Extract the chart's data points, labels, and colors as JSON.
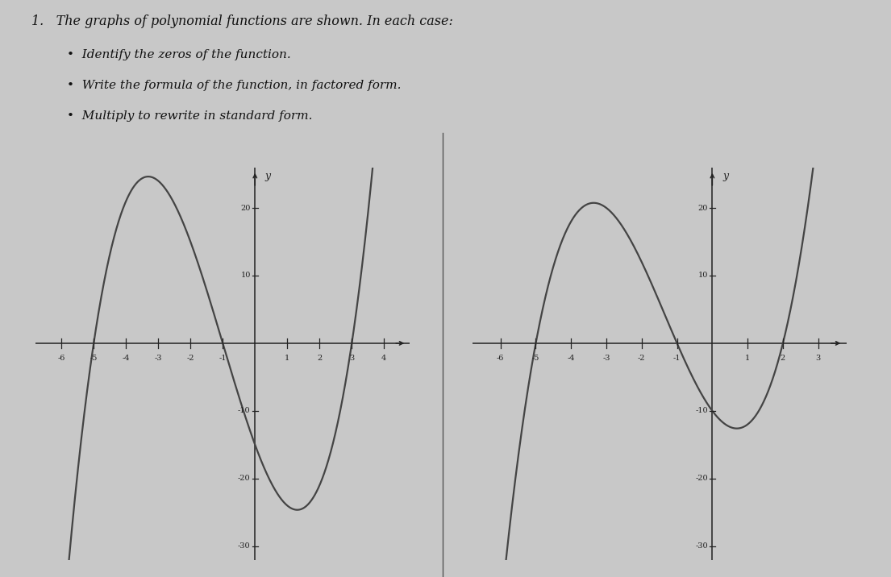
{
  "title_line1": "1.   The graphs of polynomial functions are shown. In each case:",
  "bullet1": "Identify the zeros of the function.",
  "bullet2": "Write the formula of the function, in factored form.",
  "bullet3": "Multiply to rewrite in standard form.",
  "graph1": {
    "zeros": [
      -5,
      -1,
      3
    ],
    "xlim": [
      -6.8,
      4.8
    ],
    "ylim": [
      -32,
      26
    ],
    "xticks": [
      -6,
      -5,
      -4,
      -3,
      -2,
      -1,
      1,
      2,
      3,
      4
    ],
    "yticks": [
      -30,
      -20,
      -10,
      10,
      20
    ]
  },
  "graph2": {
    "zeros": [
      -5,
      -1,
      2
    ],
    "xlim": [
      -6.8,
      3.8
    ],
    "ylim": [
      -32,
      26
    ],
    "xticks": [
      -6,
      -5,
      -4,
      -3,
      -2,
      -1,
      1,
      2,
      3
    ],
    "yticks": [
      -30,
      -20,
      -10,
      10,
      20
    ]
  },
  "bg_color": "#c8c8c8",
  "curve_color": "#444444",
  "axis_color": "#222222",
  "text_color": "#111111",
  "divider_color": "#555555",
  "font_family": "DejaVu Serif"
}
